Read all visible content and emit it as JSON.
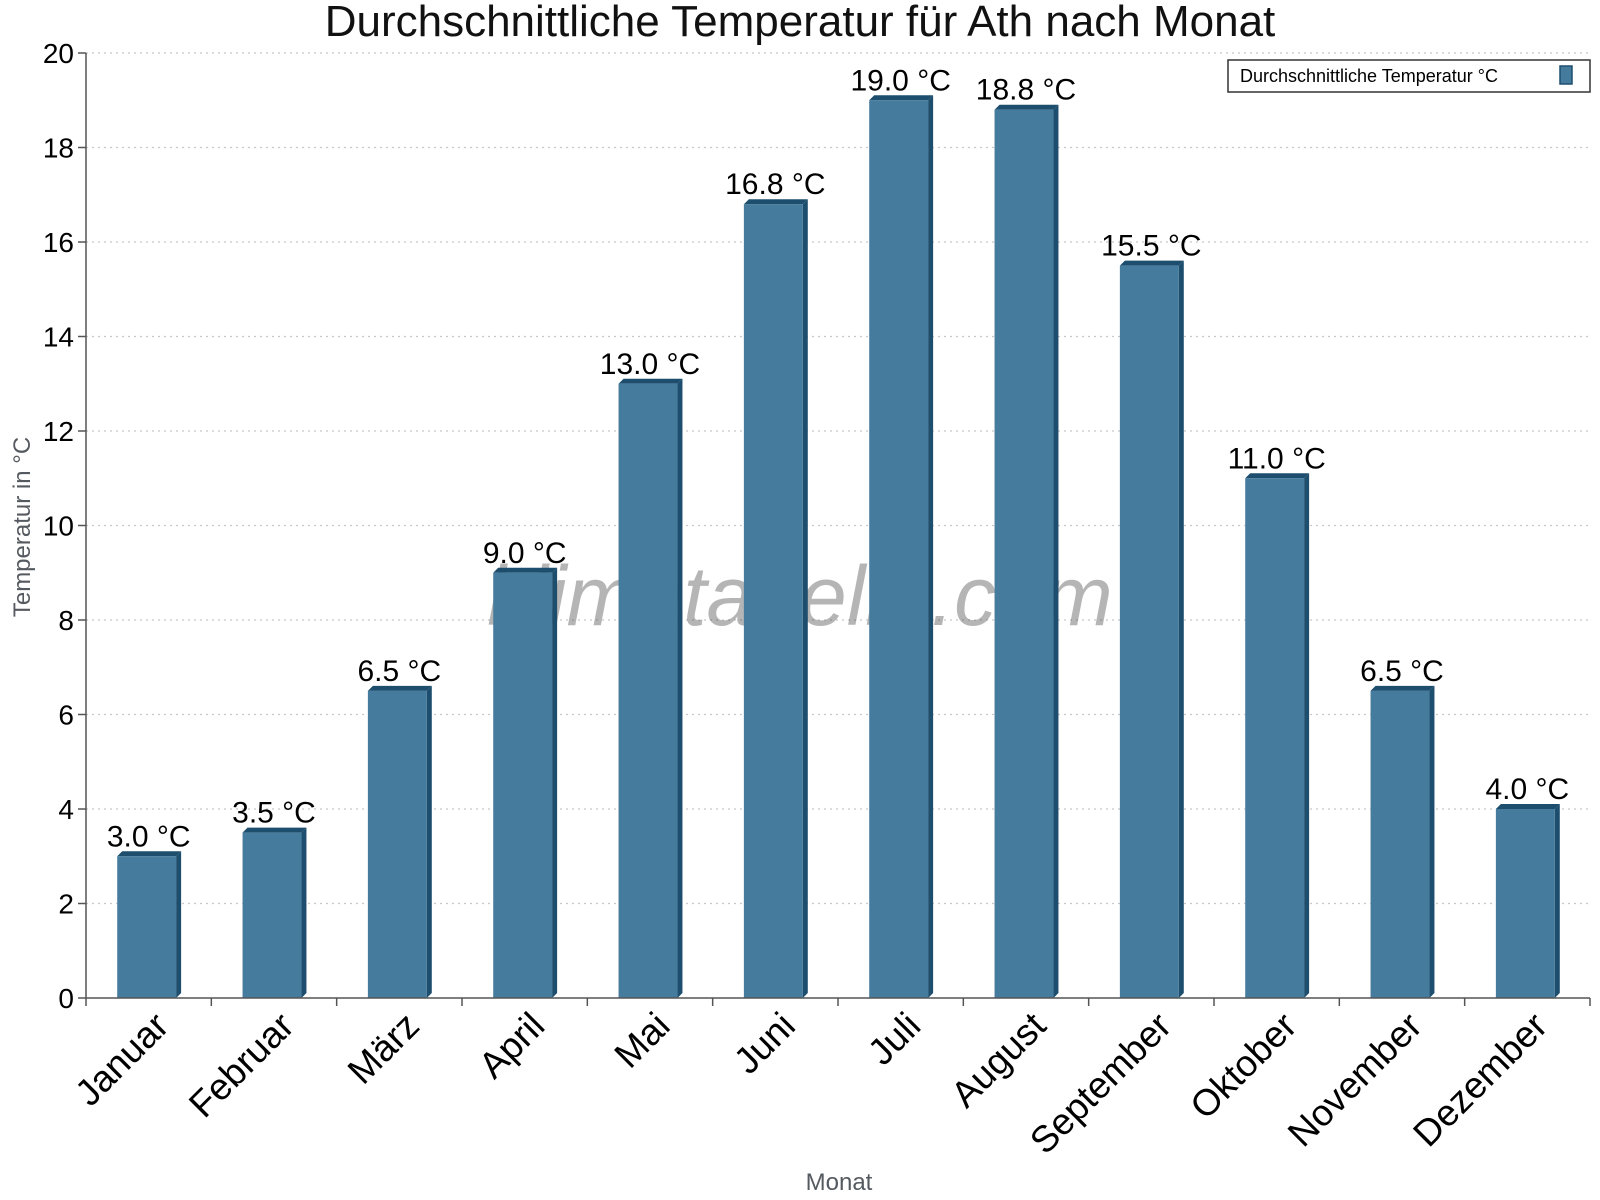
{
  "chart_data": {
    "type": "bar",
    "title": "Durchschnittliche Temperatur für Ath nach Monat",
    "xlabel": "Monat",
    "ylabel": "Temperatur in °C",
    "categories": [
      "Januar",
      "Februar",
      "März",
      "April",
      "Mai",
      "Juni",
      "Juli",
      "August",
      "September",
      "Oktober",
      "November",
      "Dezember"
    ],
    "series": [
      {
        "name": "Durchschnittliche Temperatur °C",
        "values": [
          3.0,
          3.5,
          6.5,
          9.0,
          13.0,
          16.8,
          19.0,
          18.8,
          15.5,
          11.0,
          6.5,
          4.0
        ],
        "data_labels": [
          "3.0 °C",
          "3.5 °C",
          "6.5 °C",
          "9.0 °C",
          "13.0 °C",
          "16.8 °C",
          "19.0 °C",
          "18.8 °C",
          "15.5 °C",
          "11.0 °C",
          "6.5 °C",
          "4.0 °C"
        ]
      }
    ],
    "ylim": [
      0,
      20
    ],
    "yticks": [
      0,
      2,
      4,
      6,
      8,
      10,
      12,
      14,
      16,
      18,
      20
    ],
    "grid": "horizontal dotted",
    "legend_position": "top-right",
    "watermark": "klimatabelle.com",
    "colors": {
      "bar": "#457b9d",
      "bar_shade": "#1d4e6e",
      "grid": "#c8c8c8",
      "axis": "#555555"
    }
  }
}
